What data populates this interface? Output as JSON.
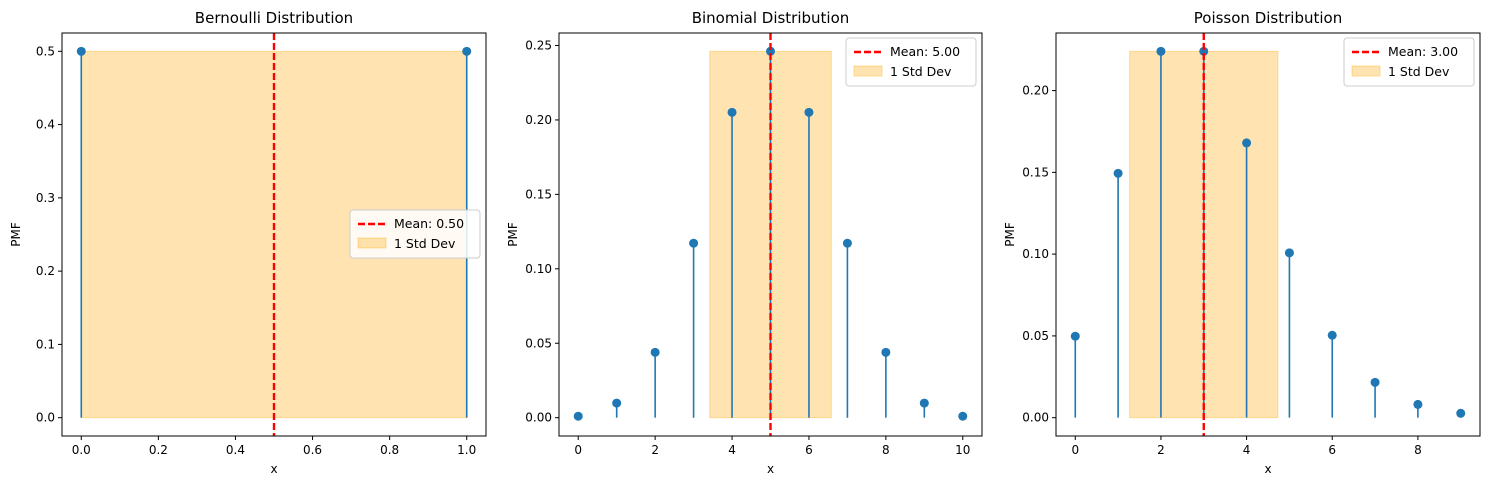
{
  "colors": {
    "stem": "#1f77b4",
    "mean_line": "#ff0000",
    "std_band": "#ffa500",
    "legend_border": "#cccccc",
    "axes": "#000000"
  },
  "chart_data": [
    {
      "type": "stem",
      "title": "Bernoulli Distribution",
      "xlabel": "x",
      "ylabel": "PMF",
      "x": [
        0,
        1
      ],
      "y": [
        0.5,
        0.5
      ],
      "xlim": [
        -0.05,
        1.05
      ],
      "ylim": [
        -0.025,
        0.525
      ],
      "xticks": [
        0.0,
        0.2,
        0.4,
        0.6,
        0.8,
        1.0
      ],
      "xtick_labels": [
        "0.0",
        "0.2",
        "0.4",
        "0.6",
        "0.8",
        "1.0"
      ],
      "yticks": [
        0.0,
        0.1,
        0.2,
        0.3,
        0.4,
        0.5
      ],
      "ytick_labels": [
        "0.0",
        "0.1",
        "0.2",
        "0.3",
        "0.4",
        "0.5"
      ],
      "mean": 0.5,
      "std_band": [
        0.0,
        1.0
      ],
      "std_band_height": 0.5,
      "legend": {
        "placement": "center-right",
        "entries": [
          "Mean: 0.50",
          "1 Std Dev"
        ]
      }
    },
    {
      "type": "stem",
      "title": "Binomial Distribution",
      "xlabel": "x",
      "ylabel": "PMF",
      "x": [
        0,
        1,
        2,
        3,
        4,
        5,
        6,
        7,
        8,
        9,
        10
      ],
      "y": [
        0.001,
        0.0098,
        0.0439,
        0.1172,
        0.2051,
        0.2461,
        0.2051,
        0.1172,
        0.0439,
        0.0098,
        0.001
      ],
      "xlim": [
        -0.5,
        10.5
      ],
      "ylim": [
        -0.0123,
        0.2584
      ],
      "xticks": [
        0,
        2,
        4,
        6,
        8,
        10
      ],
      "xtick_labels": [
        "0",
        "2",
        "4",
        "6",
        "8",
        "10"
      ],
      "yticks": [
        0.0,
        0.05,
        0.1,
        0.15,
        0.2,
        0.25
      ],
      "ytick_labels": [
        "0.00",
        "0.05",
        "0.10",
        "0.15",
        "0.20",
        "0.25"
      ],
      "mean": 5.0,
      "std_band": [
        3.42,
        6.58
      ],
      "std_band_height": 0.2461,
      "legend": {
        "placement": "top-right",
        "entries": [
          "Mean: 5.00",
          "1 Std Dev"
        ]
      }
    },
    {
      "type": "stem",
      "title": "Poisson Distribution",
      "xlabel": "x",
      "ylabel": "PMF",
      "x": [
        0,
        1,
        2,
        3,
        4,
        5,
        6,
        7,
        8,
        9
      ],
      "y": [
        0.0498,
        0.1494,
        0.224,
        0.224,
        0.168,
        0.1008,
        0.0504,
        0.0216,
        0.0081,
        0.0027
      ],
      "xlim": [
        -0.45,
        9.45
      ],
      "ylim": [
        -0.0112,
        0.2352
      ],
      "xticks": [
        0,
        2,
        4,
        6,
        8
      ],
      "xtick_labels": [
        "0",
        "2",
        "4",
        "6",
        "8"
      ],
      "yticks": [
        0.0,
        0.05,
        0.1,
        0.15,
        0.2
      ],
      "ytick_labels": [
        "0.00",
        "0.05",
        "0.10",
        "0.15",
        "0.20"
      ],
      "mean": 3.0,
      "std_band": [
        1.27,
        4.73
      ],
      "std_band_height": 0.224,
      "legend": {
        "placement": "top-right",
        "entries": [
          "Mean: 3.00",
          "1 Std Dev"
        ]
      }
    }
  ]
}
